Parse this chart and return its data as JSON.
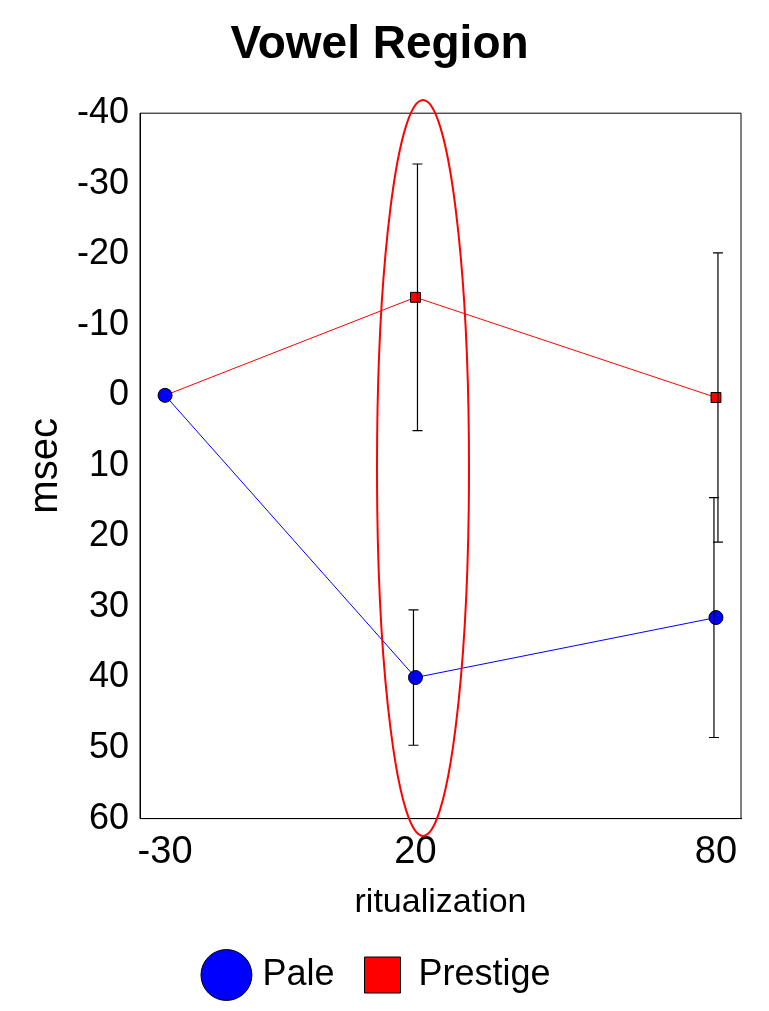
{
  "chart_data": {
    "type": "line",
    "title": "Vowel Region",
    "xlabel": "ritualization",
    "ylabel": "msec",
    "x": [
      -30,
      20,
      80
    ],
    "xlim": [
      -35,
      85
    ],
    "xticks": [
      -30,
      20,
      80
    ],
    "ylim": [
      60,
      -40
    ],
    "yticks": [
      -40,
      -30,
      -20,
      -10,
      0,
      10,
      20,
      30,
      40,
      50,
      60
    ],
    "series": [
      {
        "name": "Pale",
        "color": "#0000ff",
        "marker": "circle",
        "values": [
          0,
          40,
          31.5
        ],
        "errors": [
          null,
          9.6,
          17
        ]
      },
      {
        "name": "Prestige",
        "color": "#ff0000",
        "marker": "square",
        "values": [
          0,
          -13.9,
          0.3
        ],
        "errors": [
          null,
          18.9,
          20.5
        ]
      }
    ],
    "legend": "bottom",
    "grid": false,
    "line_style": "solid"
  }
}
